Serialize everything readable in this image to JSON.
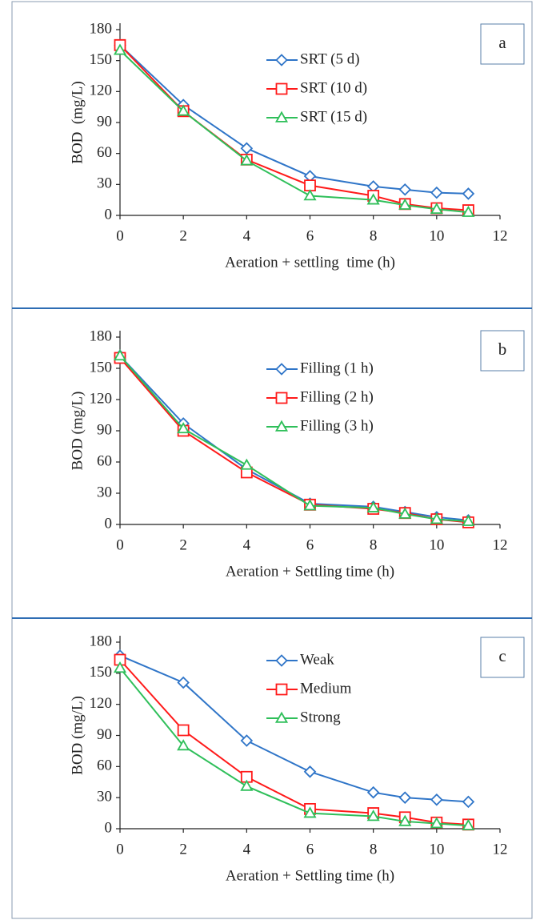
{
  "chart_data": [
    {
      "type": "line",
      "annotation": "a",
      "xlabel": "Aeration + settling  time (h)",
      "ylabel": "BOD  (mg/L)",
      "x": [
        0,
        2,
        4,
        6,
        8,
        9,
        10,
        11
      ],
      "xlim": [
        0,
        12
      ],
      "xticks": [
        0,
        2,
        4,
        6,
        8,
        10,
        12
      ],
      "ylim": [
        0,
        180
      ],
      "yticks": [
        0,
        30,
        60,
        90,
        120,
        150,
        180
      ],
      "series": [
        {
          "name": "SRT (5 d)",
          "color": "#2f75c8",
          "marker": "diamond",
          "values": [
            165,
            107,
            65,
            38,
            28,
            25,
            22,
            21
          ]
        },
        {
          "name": "SRT (10 d)",
          "color": "#ff1a1a",
          "marker": "square",
          "values": [
            165,
            101,
            54,
            29,
            19,
            11,
            7,
            5
          ]
        },
        {
          "name": "SRT (15 d)",
          "color": "#2fbf5a",
          "marker": "triangle",
          "values": [
            160,
            101,
            53,
            19,
            15,
            10,
            6,
            3
          ]
        }
      ]
    },
    {
      "type": "line",
      "annotation": "b",
      "xlabel": "Aeration + Settling time (h)",
      "ylabel": "BOD (mg/L)",
      "x": [
        0,
        2,
        4,
        6,
        8,
        9,
        10,
        11
      ],
      "xlim": [
        0,
        12
      ],
      "xticks": [
        0,
        2,
        4,
        6,
        8,
        10,
        12
      ],
      "ylim": [
        0,
        180
      ],
      "yticks": [
        0,
        30,
        60,
        90,
        120,
        150,
        180
      ],
      "series": [
        {
          "name": "Filling (1 h)",
          "color": "#2f75c8",
          "marker": "diamond",
          "values": [
            162,
            97,
            53,
            20,
            17,
            12,
            7,
            4
          ]
        },
        {
          "name": "Filling (2 h)",
          "color": "#ff1a1a",
          "marker": "square",
          "values": [
            160,
            90,
            50,
            19,
            15,
            11,
            5,
            2
          ]
        },
        {
          "name": "Filling (3 h)",
          "color": "#2fbf5a",
          "marker": "triangle",
          "values": [
            162,
            92,
            57,
            18,
            16,
            10,
            5,
            3
          ]
        }
      ]
    },
    {
      "type": "line",
      "annotation": "c",
      "xlabel": "Aeration + Settling time (h)",
      "ylabel": "BOD (mg/L)",
      "x": [
        0,
        2,
        4,
        6,
        8,
        9,
        10,
        11
      ],
      "xlim": [
        0,
        12
      ],
      "xticks": [
        0,
        2,
        4,
        6,
        8,
        10,
        12
      ],
      "ylim": [
        0,
        180
      ],
      "yticks": [
        0,
        30,
        60,
        90,
        120,
        150,
        180
      ],
      "series": [
        {
          "name": "Weak",
          "color": "#2f75c8",
          "marker": "diamond",
          "values": [
            167,
            141,
            85,
            55,
            35,
            30,
            28,
            26
          ]
        },
        {
          "name": "Medium",
          "color": "#ff1a1a",
          "marker": "square",
          "values": [
            163,
            95,
            50,
            19,
            15,
            11,
            6,
            4
          ]
        },
        {
          "name": "Strong",
          "color": "#2fbf5a",
          "marker": "triangle",
          "values": [
            155,
            80,
            41,
            15,
            12,
            7,
            5,
            3
          ]
        }
      ]
    }
  ]
}
